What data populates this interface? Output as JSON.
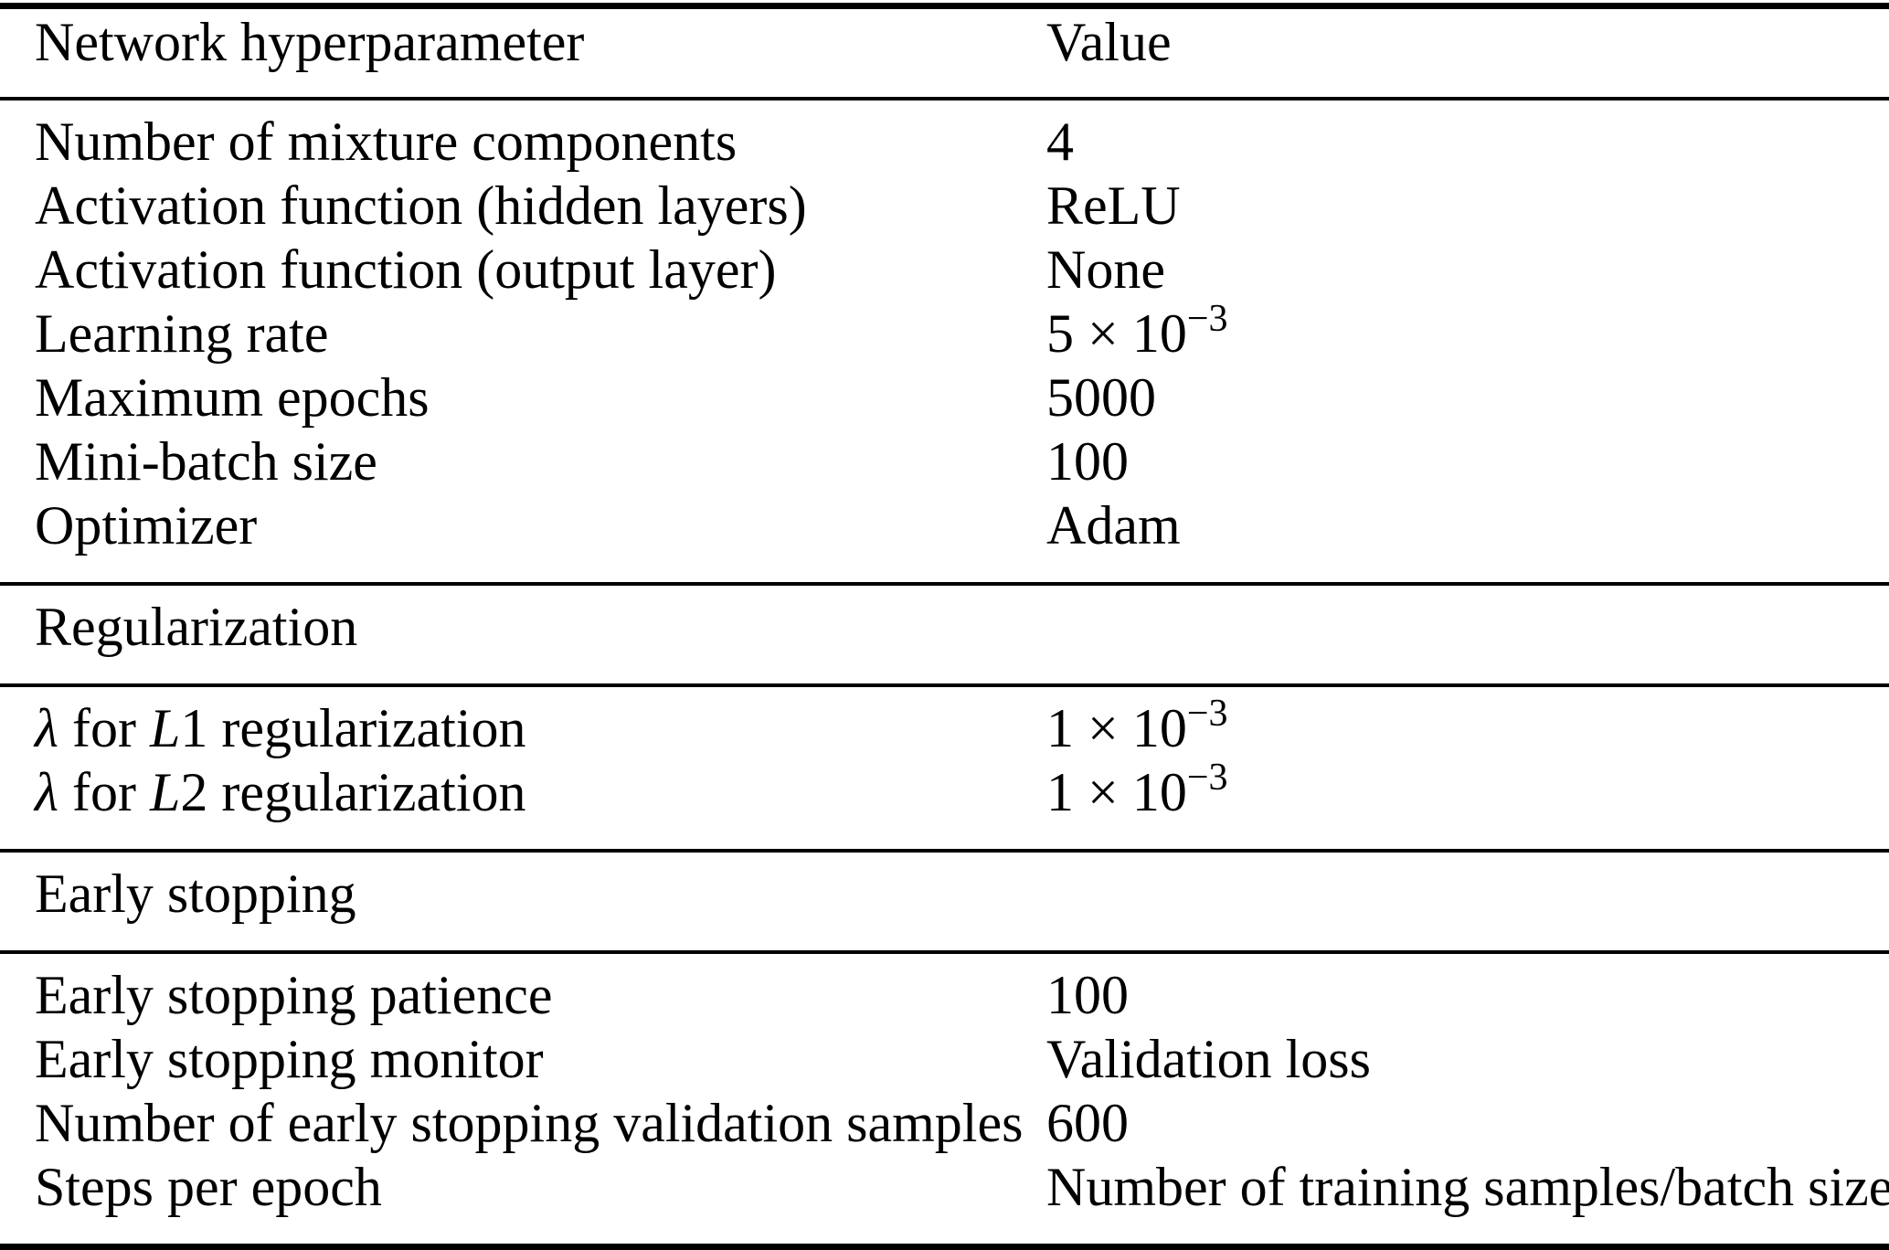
{
  "page": {
    "background_color": "#ffffff",
    "text_color": "#000000",
    "rule_color": "#000000"
  },
  "table": {
    "header": {
      "param": "Network hyperparameter",
      "value": "Value"
    },
    "groups": [
      {
        "type": "rows",
        "rows": [
          {
            "param": "Number of mixture components",
            "value": "4",
            "value_sup": ""
          },
          {
            "param": "Activation function (hidden layers)",
            "value": "ReLU",
            "value_sup": ""
          },
          {
            "param": "Activation function (output layer)",
            "value": "None",
            "value_sup": ""
          },
          {
            "param": "Learning rate",
            "value": "5 × 10",
            "value_sup": "−3"
          },
          {
            "param": "Maximum epochs",
            "value": "5000",
            "value_sup": ""
          },
          {
            "param": "Mini-batch size",
            "value": "100",
            "value_sup": ""
          },
          {
            "param": "Optimizer",
            "value": "Adam",
            "value_sup": ""
          }
        ]
      },
      {
        "type": "section",
        "label": "Regularization"
      },
      {
        "type": "rows",
        "rows": [
          {
            "lambda": "λ",
            "mid": " for ",
            "var": "L",
            "rest": "1 regularization",
            "value": "1 × 10",
            "value_sup": "−3"
          },
          {
            "lambda": "λ",
            "mid": " for ",
            "var": "L",
            "rest": "2 regularization",
            "value": "1 × 10",
            "value_sup": "−3"
          }
        ]
      },
      {
        "type": "section",
        "label": "Early stopping"
      },
      {
        "type": "rows",
        "rows": [
          {
            "param": "Early stopping patience",
            "value": "100",
            "value_sup": ""
          },
          {
            "param": "Early stopping monitor",
            "value": "Validation loss",
            "value_sup": ""
          },
          {
            "param": "Number of early stopping validation samples",
            "value": "600",
            "value_sup": ""
          },
          {
            "param": "Steps per epoch",
            "value": "Number of training samples/batch size",
            "value_sup": ""
          }
        ]
      }
    ]
  }
}
